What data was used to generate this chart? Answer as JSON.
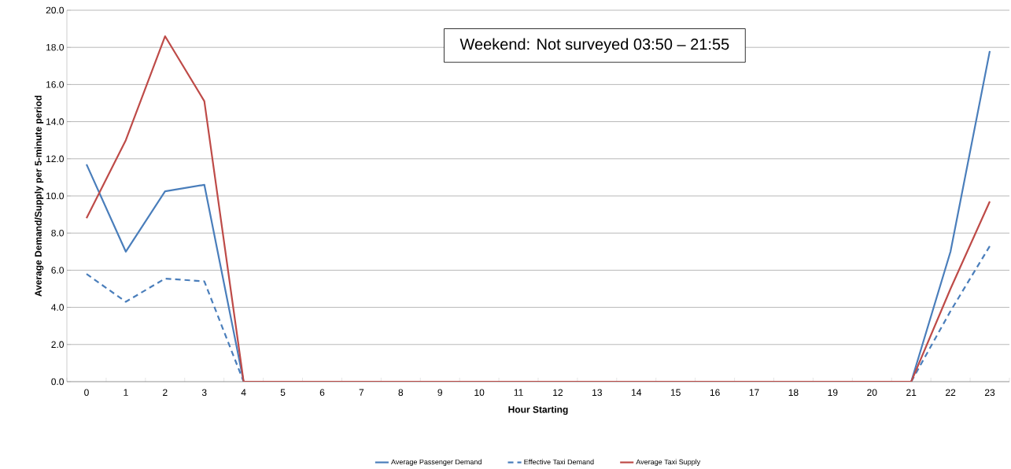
{
  "chart_data": {
    "type": "line",
    "xlabel": "Hour Starting",
    "ylabel": "Average Demand/Supply per 5-minute period",
    "annotations": [
      "Weekend: Not surveyed 03:50 – 21:55"
    ],
    "categories": [
      "0",
      "1",
      "2",
      "3",
      "4",
      "5",
      "6",
      "7",
      "8",
      "9",
      "10",
      "11",
      "12",
      "13",
      "14",
      "15",
      "16",
      "17",
      "18",
      "19",
      "20",
      "21",
      "22",
      "23"
    ],
    "series": [
      {
        "name": "Average Passenger Demand",
        "color": "#4a7ebb",
        "line_style": "solid",
        "values": [
          11.7,
          7.0,
          10.25,
          10.6,
          0,
          null,
          null,
          null,
          null,
          null,
          null,
          null,
          null,
          null,
          null,
          null,
          null,
          null,
          null,
          null,
          null,
          0,
          7.0,
          17.8
        ]
      },
      {
        "name": "Effective Taxi Demand",
        "color": "#4a7ebb",
        "line_style": "dashed",
        "values": [
          5.8,
          4.3,
          5.55,
          5.4,
          0,
          null,
          null,
          null,
          null,
          null,
          null,
          null,
          null,
          null,
          null,
          null,
          null,
          null,
          null,
          null,
          null,
          0,
          3.8,
          7.3
        ]
      },
      {
        "name": "Average Taxi Supply",
        "color": "#be4b48",
        "line_style": "solid",
        "values": [
          8.8,
          13.0,
          18.6,
          15.1,
          0,
          0,
          0,
          0,
          0,
          0,
          0,
          0,
          0,
          0,
          0,
          0,
          0,
          0,
          0,
          0,
          0,
          0,
          5.0,
          9.7
        ]
      }
    ],
    "ylim": [
      0,
      20
    ],
    "yticks": [
      {
        "value": 0,
        "label": "0.0"
      },
      {
        "value": 2,
        "label": "2.0"
      },
      {
        "value": 4,
        "label": "4.0"
      },
      {
        "value": 6,
        "label": "6.0"
      },
      {
        "value": 8,
        "label": "8.0"
      },
      {
        "value": 10,
        "label": "10.0"
      },
      {
        "value": 12,
        "label": "12.0"
      },
      {
        "value": 14,
        "label": "14.0"
      },
      {
        "value": 16,
        "label": "16.0"
      },
      {
        "value": 18,
        "label": "18.0"
      },
      {
        "value": 20,
        "label": "20.0"
      }
    ],
    "grid": "y",
    "legend": "bottom"
  }
}
